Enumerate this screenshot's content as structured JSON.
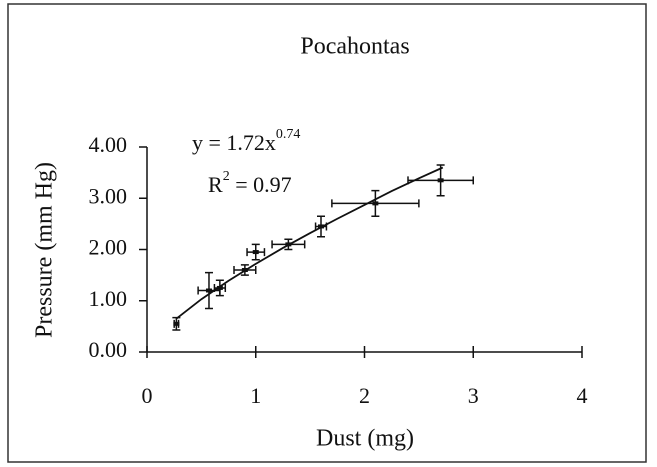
{
  "chart_data": {
    "type": "scatter",
    "title": "Pocahontas",
    "x_label": "Dust (mg)",
    "y_label": "Pressure (mm Hg)",
    "equation": "y = 1.72x",
    "equation_exponent": "0.74",
    "r2_base": "R",
    "r2_exponent": "2",
    "r2_value": " = 0.97",
    "color": "#111111",
    "x": [
      0.27,
      0.57,
      0.67,
      0.9,
      1.0,
      1.3,
      1.6,
      2.1,
      2.7
    ],
    "values": [
      0.55,
      1.2,
      1.25,
      1.6,
      1.95,
      2.1,
      2.45,
      2.9,
      3.35
    ],
    "xerr": [
      0.02,
      0.1,
      0.05,
      0.1,
      0.08,
      0.15,
      0.05,
      0.4,
      0.3
    ],
    "yerr": [
      0.12,
      0.35,
      0.15,
      0.1,
      0.15,
      0.1,
      0.2,
      0.25,
      0.3
    ],
    "fit": {
      "x": [
        0.27,
        0.5,
        0.75,
        1.0,
        1.25,
        1.5,
        1.75,
        2.0,
        2.25,
        2.5,
        2.72
      ],
      "values": [
        0.65,
        1.03,
        1.39,
        1.72,
        2.03,
        2.32,
        2.6,
        2.87,
        3.14,
        3.39,
        3.6
      ]
    },
    "xlim": [
      0,
      4
    ],
    "xticks": [
      0,
      1,
      2,
      3,
      4
    ],
    "ylim": [
      0,
      4
    ],
    "yticks": [
      {
        "value": 0,
        "label": "0.00"
      },
      {
        "value": 1,
        "label": "1.00"
      },
      {
        "value": 2,
        "label": "2.00"
      },
      {
        "value": 3,
        "label": "3.00"
      },
      {
        "value": 4,
        "label": "4.00"
      }
    ]
  }
}
